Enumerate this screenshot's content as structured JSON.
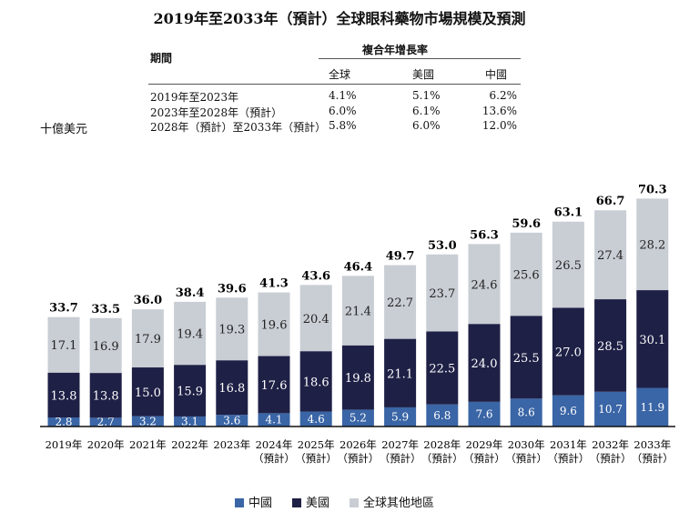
{
  "title": "2019年至2033年（預計）全球眼科藥物市場規模及預測",
  "cagr_table": {
    "period_header": "期間",
    "group_header": "複合年增長率",
    "columns": [
      "全球",
      "美國",
      "中國"
    ],
    "rows": [
      {
        "period": "2019年至2023年",
        "values": [
          "4.1%",
          "5.1%",
          "6.2%"
        ]
      },
      {
        "period": "2023年至2028年（預計）",
        "values": [
          "6.0%",
          "6.1%",
          "13.6%"
        ]
      },
      {
        "period": "2028年（預計）至2033年（預計）",
        "values": [
          "5.8%",
          "6.0%",
          "12.0%"
        ]
      }
    ]
  },
  "unit": "十億美元",
  "chart_data": {
    "type": "bar",
    "stacked": true,
    "categories": [
      "2019年",
      "2020年",
      "2021年",
      "2022年",
      "2023年",
      "2024年（預計）",
      "2025年（預計）",
      "2026年（預計）",
      "2027年（預計）",
      "2028年（預計）",
      "2029年（預計）",
      "2030年（預計）",
      "2031年（預計）",
      "2032年（預計）",
      "2033年（預計）"
    ],
    "category_lines": [
      [
        "2019年"
      ],
      [
        "2020年"
      ],
      [
        "2021年"
      ],
      [
        "2022年"
      ],
      [
        "2023年"
      ],
      [
        "2024年",
        "（預計）"
      ],
      [
        "2025年",
        "（預計）"
      ],
      [
        "2026年",
        "（預計）"
      ],
      [
        "2027年",
        "（預計）"
      ],
      [
        "2028年",
        "（預計）"
      ],
      [
        "2029年",
        "（預計）"
      ],
      [
        "2030年",
        "（預計）"
      ],
      [
        "2031年",
        "（預計）"
      ],
      [
        "2032年",
        "（預計）"
      ],
      [
        "2033年",
        "（預計）"
      ]
    ],
    "series": [
      {
        "name": "中國",
        "color": "#3a65a6",
        "values": [
          2.8,
          2.7,
          3.2,
          3.1,
          3.6,
          4.1,
          4.6,
          5.2,
          5.9,
          6.8,
          7.6,
          8.6,
          9.6,
          10.7,
          11.9
        ]
      },
      {
        "name": "美國",
        "color": "#1f2046",
        "values": [
          13.8,
          13.8,
          15.0,
          15.9,
          16.8,
          17.6,
          18.6,
          19.8,
          21.1,
          22.5,
          24.0,
          25.5,
          27.0,
          28.5,
          30.1
        ]
      },
      {
        "name": "全球其他地區",
        "color": "#c9cdd4",
        "values": [
          17.1,
          16.9,
          17.9,
          19.4,
          19.3,
          19.6,
          20.4,
          21.4,
          22.7,
          23.7,
          24.6,
          25.6,
          26.5,
          27.4,
          28.2
        ]
      }
    ],
    "totals": [
      33.7,
      33.5,
      36.0,
      38.4,
      39.6,
      41.3,
      43.6,
      46.4,
      49.7,
      53.0,
      56.3,
      59.6,
      63.1,
      66.7,
      70.3
    ],
    "legend_position": "bottom",
    "grid": false
  }
}
